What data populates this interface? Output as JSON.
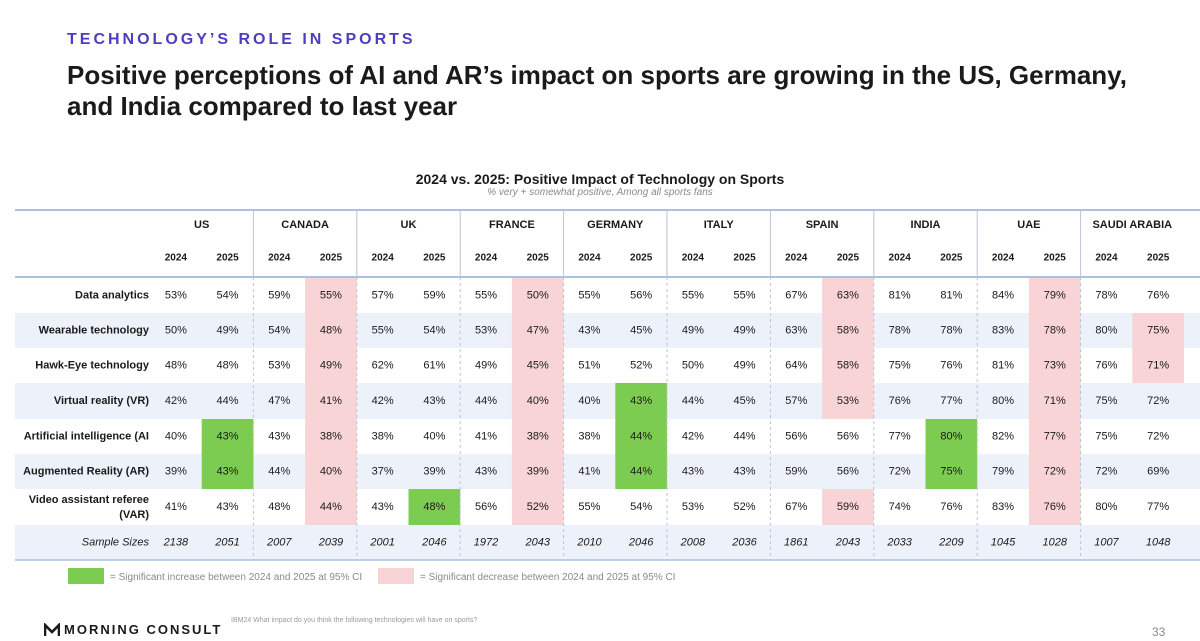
{
  "header": {
    "section_label": "TECHNOLOGY’S ROLE IN SPORTS",
    "headline": "Positive perceptions of AI and AR’s impact on sports are growing in the US, Germany, and India compared to last year"
  },
  "chart_data": {
    "type": "table",
    "title": "2024 vs. 2025: Positive Impact of Technology on Sports",
    "subtitle": "% very + somewhat positive, Among all sports fans",
    "countries": [
      "US",
      "CANADA",
      "UK",
      "FRANCE",
      "GERMANY",
      "ITALY",
      "SPAIN",
      "INDIA",
      "UAE",
      "SAUDI ARABIA"
    ],
    "years": [
      "2024",
      "2025"
    ],
    "rows": [
      {
        "label": "Data analytics",
        "values": [
          "53%",
          "54%",
          "59%",
          "55%",
          "57%",
          "59%",
          "55%",
          "50%",
          "55%",
          "56%",
          "55%",
          "55%",
          "67%",
          "63%",
          "81%",
          "81%",
          "84%",
          "79%",
          "78%",
          "76%"
        ],
        "sig": [
          0,
          0,
          0,
          -1,
          0,
          0,
          0,
          -1,
          0,
          0,
          0,
          0,
          0,
          -1,
          0,
          0,
          0,
          -1,
          0,
          0
        ]
      },
      {
        "label": "Wearable technology",
        "values": [
          "50%",
          "49%",
          "54%",
          "48%",
          "55%",
          "54%",
          "53%",
          "47%",
          "43%",
          "45%",
          "49%",
          "49%",
          "63%",
          "58%",
          "78%",
          "78%",
          "83%",
          "78%",
          "80%",
          "75%"
        ],
        "sig": [
          0,
          0,
          0,
          -1,
          0,
          0,
          0,
          -1,
          0,
          0,
          0,
          0,
          0,
          -1,
          0,
          0,
          0,
          -1,
          0,
          -1
        ]
      },
      {
        "label": "Hawk-Eye technology",
        "values": [
          "48%",
          "48%",
          "53%",
          "49%",
          "62%",
          "61%",
          "49%",
          "45%",
          "51%",
          "52%",
          "50%",
          "49%",
          "64%",
          "58%",
          "75%",
          "76%",
          "81%",
          "73%",
          "76%",
          "71%"
        ],
        "sig": [
          0,
          0,
          0,
          -1,
          0,
          0,
          0,
          -1,
          0,
          0,
          0,
          0,
          0,
          -1,
          0,
          0,
          0,
          -1,
          0,
          -1
        ]
      },
      {
        "label": "Virtual reality (VR)",
        "values": [
          "42%",
          "44%",
          "47%",
          "41%",
          "42%",
          "43%",
          "44%",
          "40%",
          "40%",
          "43%",
          "44%",
          "45%",
          "57%",
          "53%",
          "76%",
          "77%",
          "80%",
          "71%",
          "75%",
          "72%"
        ],
        "sig": [
          0,
          0,
          0,
          -1,
          0,
          0,
          0,
          -1,
          0,
          1,
          0,
          0,
          0,
          -1,
          0,
          0,
          0,
          -1,
          0,
          0
        ]
      },
      {
        "label": "Artificial intelligence (AI",
        "values": [
          "40%",
          "43%",
          "43%",
          "38%",
          "38%",
          "40%",
          "41%",
          "38%",
          "38%",
          "44%",
          "42%",
          "44%",
          "56%",
          "56%",
          "77%",
          "80%",
          "82%",
          "77%",
          "75%",
          "72%"
        ],
        "sig": [
          0,
          1,
          0,
          -1,
          0,
          0,
          0,
          -1,
          0,
          1,
          0,
          0,
          0,
          0,
          0,
          1,
          0,
          -1,
          0,
          0
        ]
      },
      {
        "label": "Augmented Reality (AR)",
        "values": [
          "39%",
          "43%",
          "44%",
          "40%",
          "37%",
          "39%",
          "43%",
          "39%",
          "41%",
          "44%",
          "43%",
          "43%",
          "59%",
          "56%",
          "72%",
          "75%",
          "79%",
          "72%",
          "72%",
          "69%"
        ],
        "sig": [
          0,
          1,
          0,
          -1,
          0,
          0,
          0,
          -1,
          0,
          1,
          0,
          0,
          0,
          0,
          0,
          1,
          0,
          -1,
          0,
          0
        ]
      },
      {
        "label": "Video assistant referee (VAR)",
        "label_lines": [
          "Video assistant referee",
          "(VAR)"
        ],
        "values": [
          "41%",
          "43%",
          "48%",
          "44%",
          "43%",
          "48%",
          "56%",
          "52%",
          "55%",
          "54%",
          "53%",
          "52%",
          "67%",
          "59%",
          "74%",
          "76%",
          "83%",
          "76%",
          "80%",
          "77%"
        ],
        "sig": [
          0,
          0,
          0,
          -1,
          0,
          1,
          0,
          -1,
          0,
          0,
          0,
          0,
          0,
          -1,
          0,
          0,
          0,
          -1,
          0,
          0
        ]
      }
    ],
    "sample_sizes": {
      "label": "Sample Sizes",
      "values": [
        "2138",
        "2051",
        "2007",
        "2039",
        "2001",
        "2046",
        "1972",
        "2043",
        "2010",
        "2046",
        "2008",
        "2036",
        "1861",
        "2043",
        "2033",
        "2209",
        "1045",
        "1028",
        "1007",
        "1048"
      ]
    }
  },
  "legend": {
    "increase": "= Significant increase between 2024 and 2025 at 95% CI",
    "decrease": "= Significant decrease between 2024 and 2025 at 95% CI"
  },
  "colors": {
    "increase": "#7ccc52",
    "decrease": "#f9d4d6",
    "band": "#edf2fa",
    "rule": "#a9c1e3",
    "section": "#4b3fbf"
  },
  "footer": {
    "brand": "MORNING CONSULT",
    "footnote": "IBM24 What impact do you think the following technologies will have on sports?",
    "page": "33"
  }
}
